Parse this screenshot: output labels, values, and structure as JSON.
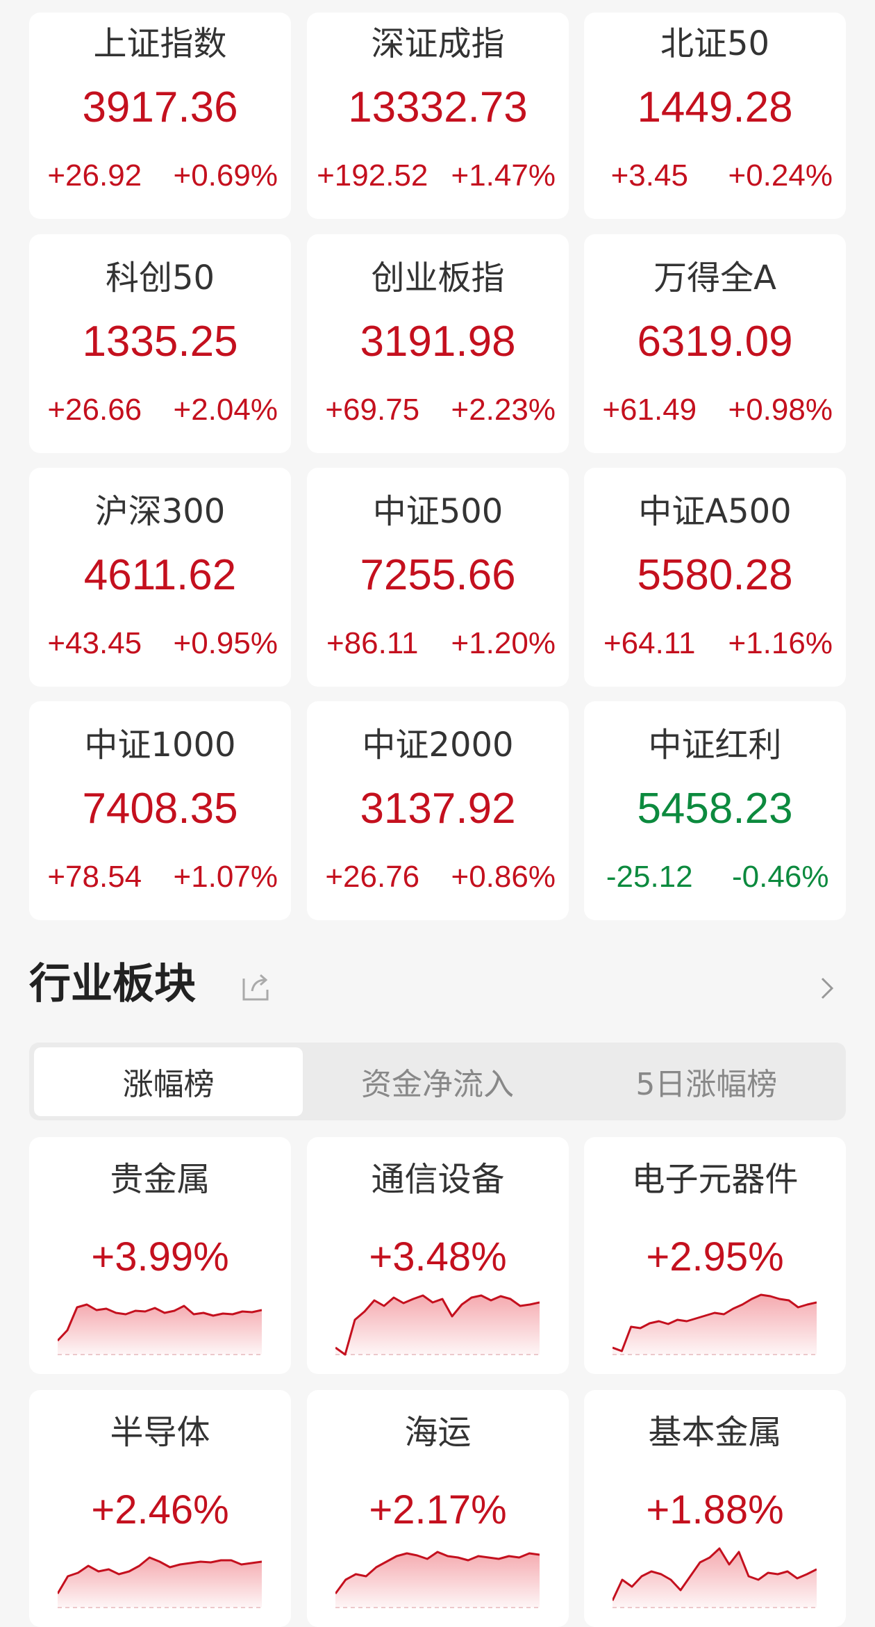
{
  "colors": {
    "up": "#c4101e",
    "down": "#0c8a3e",
    "background": "#f6f6f6",
    "card": "#ffffff"
  },
  "indices": [
    {
      "name": "上证指数",
      "price": "3917.36",
      "change": "+26.92",
      "pct": "+0.69%",
      "trend": "up"
    },
    {
      "name": "深证成指",
      "price": "13332.73",
      "change": "+192.52",
      "pct": "+1.47%",
      "trend": "up"
    },
    {
      "name": "北证50",
      "price": "1449.28",
      "change": "+3.45",
      "pct": "+0.24%",
      "trend": "up"
    },
    {
      "name": "科创50",
      "price": "1335.25",
      "change": "+26.66",
      "pct": "+2.04%",
      "trend": "up"
    },
    {
      "name": "创业板指",
      "price": "3191.98",
      "change": "+69.75",
      "pct": "+2.23%",
      "trend": "up"
    },
    {
      "name": "万得全A",
      "price": "6319.09",
      "change": "+61.49",
      "pct": "+0.98%",
      "trend": "up"
    },
    {
      "name": "沪深300",
      "price": "4611.62",
      "change": "+43.45",
      "pct": "+0.95%",
      "trend": "up"
    },
    {
      "name": "中证500",
      "price": "7255.66",
      "change": "+86.11",
      "pct": "+1.20%",
      "trend": "up"
    },
    {
      "name": "中证A500",
      "price": "5580.28",
      "change": "+64.11",
      "pct": "+1.16%",
      "trend": "up"
    },
    {
      "name": "中证1000",
      "price": "7408.35",
      "change": "+78.54",
      "pct": "+1.07%",
      "trend": "up"
    },
    {
      "name": "中证2000",
      "price": "3137.92",
      "change": "+26.76",
      "pct": "+0.86%",
      "trend": "up"
    },
    {
      "name": "中证红利",
      "price": "5458.23",
      "change": "-25.12",
      "pct": "-0.46%",
      "trend": "down"
    }
  ],
  "industry": {
    "title": "行业板块",
    "share_icon": "share-icon",
    "more_icon": "chevron-right-icon",
    "tabs": [
      {
        "label": "涨幅榜",
        "active": true
      },
      {
        "label": "资金净流入",
        "active": false
      },
      {
        "label": "5日涨幅榜",
        "active": false
      }
    ],
    "sectors": [
      {
        "name": "贵金属",
        "pct": "+3.99%",
        "spark": [
          20,
          35,
          68,
          72,
          64,
          66,
          60,
          58,
          63,
          62,
          67,
          60,
          63,
          70,
          58,
          60,
          56,
          59,
          58,
          62,
          61,
          64
        ]
      },
      {
        "name": "通信设备",
        "pct": "+3.48%",
        "spark": [
          10,
          0,
          50,
          62,
          78,
          70,
          82,
          74,
          80,
          85,
          75,
          80,
          55,
          72,
          82,
          85,
          78,
          84,
          80,
          70,
          72,
          75
        ]
      },
      {
        "name": "电子元器件",
        "pct": "+2.95%",
        "spark": [
          10,
          5,
          40,
          38,
          45,
          48,
          44,
          50,
          48,
          52,
          56,
          60,
          58,
          66,
          72,
          80,
          86,
          84,
          80,
          78,
          68,
          72,
          75
        ]
      },
      {
        "name": "半导体",
        "pct": "+2.46%",
        "spark": [
          20,
          45,
          50,
          60,
          52,
          55,
          48,
          52,
          60,
          72,
          66,
          58,
          62,
          64,
          66,
          65,
          68,
          68,
          62,
          64,
          66
        ]
      },
      {
        "name": "海运",
        "pct": "+2.17%",
        "spark": [
          20,
          40,
          48,
          45,
          58,
          66,
          74,
          78,
          75,
          70,
          80,
          74,
          72,
          68,
          74,
          72,
          70,
          74,
          72,
          78,
          76
        ]
      },
      {
        "name": "基本金属",
        "pct": "+1.88%",
        "spark": [
          10,
          40,
          30,
          45,
          52,
          48,
          40,
          25,
          45,
          65,
          72,
          85,
          62,
          80,
          45,
          40,
          50,
          48,
          52,
          42,
          48,
          55
        ]
      }
    ]
  }
}
